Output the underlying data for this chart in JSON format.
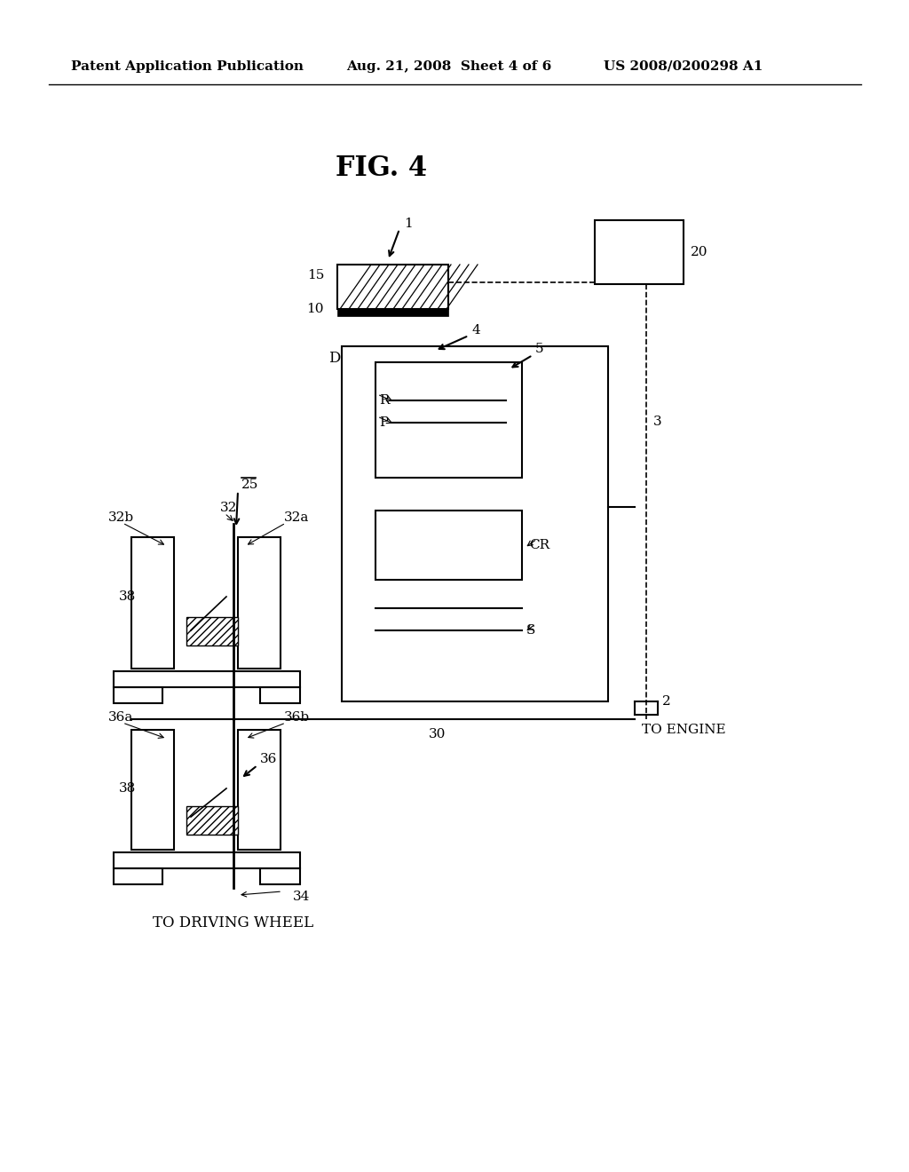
{
  "bg_color": "#ffffff",
  "header_left": "Patent Application Publication",
  "header_mid": "Aug. 21, 2008  Sheet 4 of 6",
  "header_right": "US 2008/0200298 A1",
  "fig_title": "FIG. 4",
  "footer_text": "TO DRIVING WHEEL"
}
